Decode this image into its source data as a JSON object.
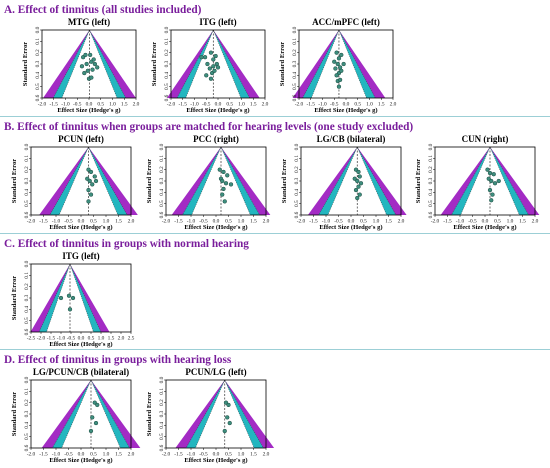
{
  "sections": [
    {
      "id": "A",
      "title": "A. Effect of tinnitus (all studies included)"
    },
    {
      "id": "B",
      "title": "B. Effect of tinnitus when groups are matched for hearing levels (one study excluded)"
    },
    {
      "id": "C",
      "title": "C. Effect of tinnitus in groups with normal hearing"
    },
    {
      "id": "D",
      "title": "D. Effect of tinnitus in groups with hearing loss"
    }
  ],
  "colors": {
    "title": "#7A1E9C",
    "rule": "#9CCFD6",
    "outer_band": "#A32BC4",
    "middle_band": "#23B6BF",
    "inner_funnel": "#FFFFFF",
    "point_fill": "#3E8E7E",
    "point_stroke": "#1C4A40",
    "mean_line": "#333333"
  },
  "chart_data": [
    {
      "id": "a1",
      "section": "A",
      "type": "scatter",
      "title": "MTG (left)",
      "xlabel": "Effect Size (Hedge's g)",
      "ylabel": "Standard Error",
      "xlim": [
        -2.0,
        2.0
      ],
      "xticks": [
        "-2.0",
        "-1.5",
        "-1.0",
        "-0.5",
        "0.0",
        "0.5",
        "1.0",
        "1.5",
        "2.0"
      ],
      "ylim": [
        0,
        0.6
      ],
      "yticks": [
        "0.0",
        "0.1",
        "0.2",
        "0.3",
        "0.4",
        "0.5",
        "0.6"
      ],
      "mean": 0.02,
      "x": [
        -0.25,
        -0.15,
        -0.1,
        0.05,
        0.1,
        0.2,
        0.25,
        -0.3,
        -0.05,
        0.15,
        0.35,
        -0.2,
        0.0,
        0.1
      ],
      "y": [
        0.24,
        0.22,
        0.3,
        0.22,
        0.28,
        0.26,
        0.3,
        0.32,
        0.36,
        0.35,
        0.33,
        0.38,
        0.43,
        0.42
      ]
    },
    {
      "id": "a2",
      "section": "A",
      "type": "scatter",
      "title": "ITG (left)",
      "xlabel": "Effect Size (Hedge's g)",
      "ylabel": "Standard Error",
      "xlim": [
        -2.0,
        2.0
      ],
      "xticks": [
        "-2.0",
        "-1.5",
        "-1.0",
        "-0.5",
        "0.0",
        "0.5",
        "1.0",
        "1.5",
        "2.0"
      ],
      "ylim": [
        0,
        0.6
      ],
      "yticks": [
        "0.0",
        "0.1",
        "0.2",
        "0.3",
        "0.4",
        "0.5",
        "0.6"
      ],
      "mean": -0.2,
      "x": [
        -0.7,
        -0.55,
        -0.3,
        -0.2,
        -0.1,
        -0.45,
        -0.2,
        -0.05,
        -0.35,
        -0.25,
        -0.15,
        0.0,
        -0.5,
        -0.3
      ],
      "y": [
        0.24,
        0.24,
        0.2,
        0.26,
        0.23,
        0.3,
        0.32,
        0.3,
        0.34,
        0.38,
        0.36,
        0.33,
        0.4,
        0.43
      ]
    },
    {
      "id": "a3",
      "section": "A",
      "type": "scatter",
      "title": "ACC/mPFC (left)",
      "xlabel": "Effect Size (Hedge's g)",
      "ylabel": "Standard Error",
      "xlim": [
        -2.0,
        2.0
      ],
      "xticks": [
        "-2.0",
        "-1.5",
        "-1.0",
        "-0.5",
        "0.0",
        "0.5",
        "1.0",
        "1.5",
        "2.0"
      ],
      "ylim": [
        0,
        0.6
      ],
      "yticks": [
        "0.0",
        "0.1",
        "0.2",
        "0.3",
        "0.4",
        "0.5",
        "0.6"
      ],
      "mean": -0.3,
      "x": [
        -0.4,
        -0.3,
        -0.2,
        -0.5,
        -0.35,
        -0.1,
        -0.45,
        -0.25,
        -0.3,
        -0.2,
        -0.4,
        -0.35,
        -0.25,
        -0.3
      ],
      "y": [
        0.2,
        0.25,
        0.22,
        0.28,
        0.3,
        0.3,
        0.34,
        0.33,
        0.38,
        0.36,
        0.4,
        0.45,
        0.44,
        0.5
      ]
    },
    {
      "id": "b1",
      "section": "B",
      "type": "scatter",
      "title": "PCUN (left)",
      "xlabel": "Effect Size (Hedge's g)",
      "ylabel": "Standard Error",
      "xlim": [
        -2.0,
        2.0
      ],
      "xticks": [
        "-2.0",
        "-1.5",
        "-1.0",
        "-0.5",
        "0.0",
        "0.5",
        "1.0",
        "1.5",
        "2.0"
      ],
      "ylim": [
        0,
        0.6
      ],
      "yticks": [
        "0.0",
        "0.1",
        "0.2",
        "0.3",
        "0.4",
        "0.5",
        "0.6"
      ],
      "mean": 0.3,
      "x": [
        0.3,
        0.4,
        0.55,
        0.25,
        0.35,
        0.45,
        0.6,
        0.3,
        0.4,
        0.3
      ],
      "y": [
        0.2,
        0.22,
        0.26,
        0.28,
        0.3,
        0.33,
        0.3,
        0.38,
        0.42,
        0.48
      ]
    },
    {
      "id": "b2",
      "section": "B",
      "type": "scatter",
      "title": "PCC (right)",
      "xlabel": "Effect Size (Hedge's g)",
      "ylabel": "Standard Error",
      "xlim": [
        -2.0,
        2.0
      ],
      "xticks": [
        "-2.0",
        "-1.5",
        "-1.0",
        "-0.5",
        "0.0",
        "0.5",
        "1.0",
        "1.5",
        "2.0"
      ],
      "ylim": [
        0,
        0.6
      ],
      "yticks": [
        "0.0",
        "0.1",
        "0.2",
        "0.3",
        "0.4",
        "0.5",
        "0.6"
      ],
      "mean": 0.2,
      "x": [
        0.15,
        0.3,
        0.45,
        0.2,
        0.25,
        0.4,
        0.6,
        0.3,
        0.25,
        0.35
      ],
      "y": [
        0.2,
        0.22,
        0.25,
        0.28,
        0.3,
        0.32,
        0.33,
        0.37,
        0.42,
        0.48
      ]
    },
    {
      "id": "b3",
      "section": "B",
      "type": "scatter",
      "title": "LG/CB (bilateral)",
      "xlabel": "Effect Size (Hedge's g)",
      "ylabel": "Standard Error",
      "xlim": [
        -2.0,
        2.0
      ],
      "xticks": [
        "-2.0",
        "-1.5",
        "-1.0",
        "-0.5",
        "0.0",
        "0.5",
        "1.0",
        "1.5",
        "2.0"
      ],
      "ylim": [
        0,
        0.6
      ],
      "yticks": [
        "0.0",
        "0.1",
        "0.2",
        "0.3",
        "0.4",
        "0.5",
        "0.6"
      ],
      "mean": 0.25,
      "x": [
        0.2,
        0.3,
        0.35,
        0.15,
        0.25,
        0.4,
        0.3,
        0.2,
        0.35,
        0.25
      ],
      "y": [
        0.2,
        0.22,
        0.26,
        0.28,
        0.3,
        0.32,
        0.35,
        0.38,
        0.42,
        0.45
      ]
    },
    {
      "id": "b4",
      "section": "B",
      "type": "scatter",
      "title": "CUN (right)",
      "xlabel": "Effect Size (Hedge's g)",
      "ylabel": "Standard Error",
      "xlim": [
        -2.0,
        2.0
      ],
      "xticks": [
        "-2.0",
        "-1.5",
        "-1.0",
        "-0.5",
        "0.0",
        "0.5",
        "1.0",
        "1.5",
        "2.0"
      ],
      "ylim": [
        0,
        0.6
      ],
      "yticks": [
        "0.0",
        "0.1",
        "0.2",
        "0.3",
        "0.4",
        "0.5",
        "0.6"
      ],
      "mean": 0.2,
      "x": [
        0.1,
        0.2,
        0.35,
        0.15,
        0.25,
        0.4,
        0.55,
        0.2,
        0.3,
        0.25
      ],
      "y": [
        0.2,
        0.23,
        0.24,
        0.28,
        0.3,
        0.32,
        0.3,
        0.38,
        0.42,
        0.47
      ]
    },
    {
      "id": "c1",
      "section": "C",
      "type": "scatter",
      "title": "ITG (left)",
      "xlabel": "Effect Size (Hedge's g)",
      "ylabel": "Standard Error",
      "xlim": [
        -2.5,
        2.5
      ],
      "xticks": [
        "-2.5",
        "-2.0",
        "-1.5",
        "-1.0",
        "-0.5",
        "0.0",
        "0.5",
        "1.0",
        "1.5",
        "2.0",
        "2.5"
      ],
      "ylim": [
        0,
        0.6
      ],
      "yticks": [
        "0.0",
        "0.1",
        "0.2",
        "0.3",
        "0.4",
        "0.5",
        "0.6"
      ],
      "mean": -0.55,
      "x": [
        -1.0,
        -0.6,
        -0.4,
        -0.55
      ],
      "y": [
        0.3,
        0.28,
        0.3,
        0.4
      ]
    },
    {
      "id": "d1",
      "section": "D",
      "type": "scatter",
      "title": "LG/PCUN/CB (bilateral)",
      "xlabel": "Effect Size (Hedge's g)",
      "ylabel": "Standard Error",
      "xlim": [
        -2.0,
        2.0
      ],
      "xticks": [
        "-2.0",
        "-1.5",
        "-1.0",
        "-0.5",
        "0.0",
        "0.5",
        "1.0",
        "1.5",
        "2.0"
      ],
      "ylim": [
        0,
        0.6
      ],
      "yticks": [
        "0.0",
        "0.1",
        "0.2",
        "0.3",
        "0.4",
        "0.5",
        "0.6"
      ],
      "mean": 0.4,
      "x": [
        0.55,
        0.65,
        0.45,
        0.6,
        0.4
      ],
      "y": [
        0.2,
        0.22,
        0.33,
        0.38,
        0.45
      ]
    },
    {
      "id": "d2",
      "section": "D",
      "type": "scatter",
      "title": "PCUN/LG (left)",
      "xlabel": "Effect Size (Hedge's g)",
      "ylabel": "Standard Error",
      "xlim": [
        -2.0,
        2.0
      ],
      "xticks": [
        "-2.0",
        "-1.5",
        "-1.0",
        "-0.5",
        "0.0",
        "0.5",
        "1.0",
        "1.5",
        "2.0"
      ],
      "ylim": [
        0,
        0.6
      ],
      "yticks": [
        "0.0",
        "0.1",
        "0.2",
        "0.3",
        "0.4",
        "0.5",
        "0.6"
      ],
      "mean": 0.35,
      "x": [
        0.4,
        0.5,
        0.45,
        0.55,
        0.35
      ],
      "y": [
        0.2,
        0.22,
        0.33,
        0.38,
        0.45
      ]
    }
  ]
}
